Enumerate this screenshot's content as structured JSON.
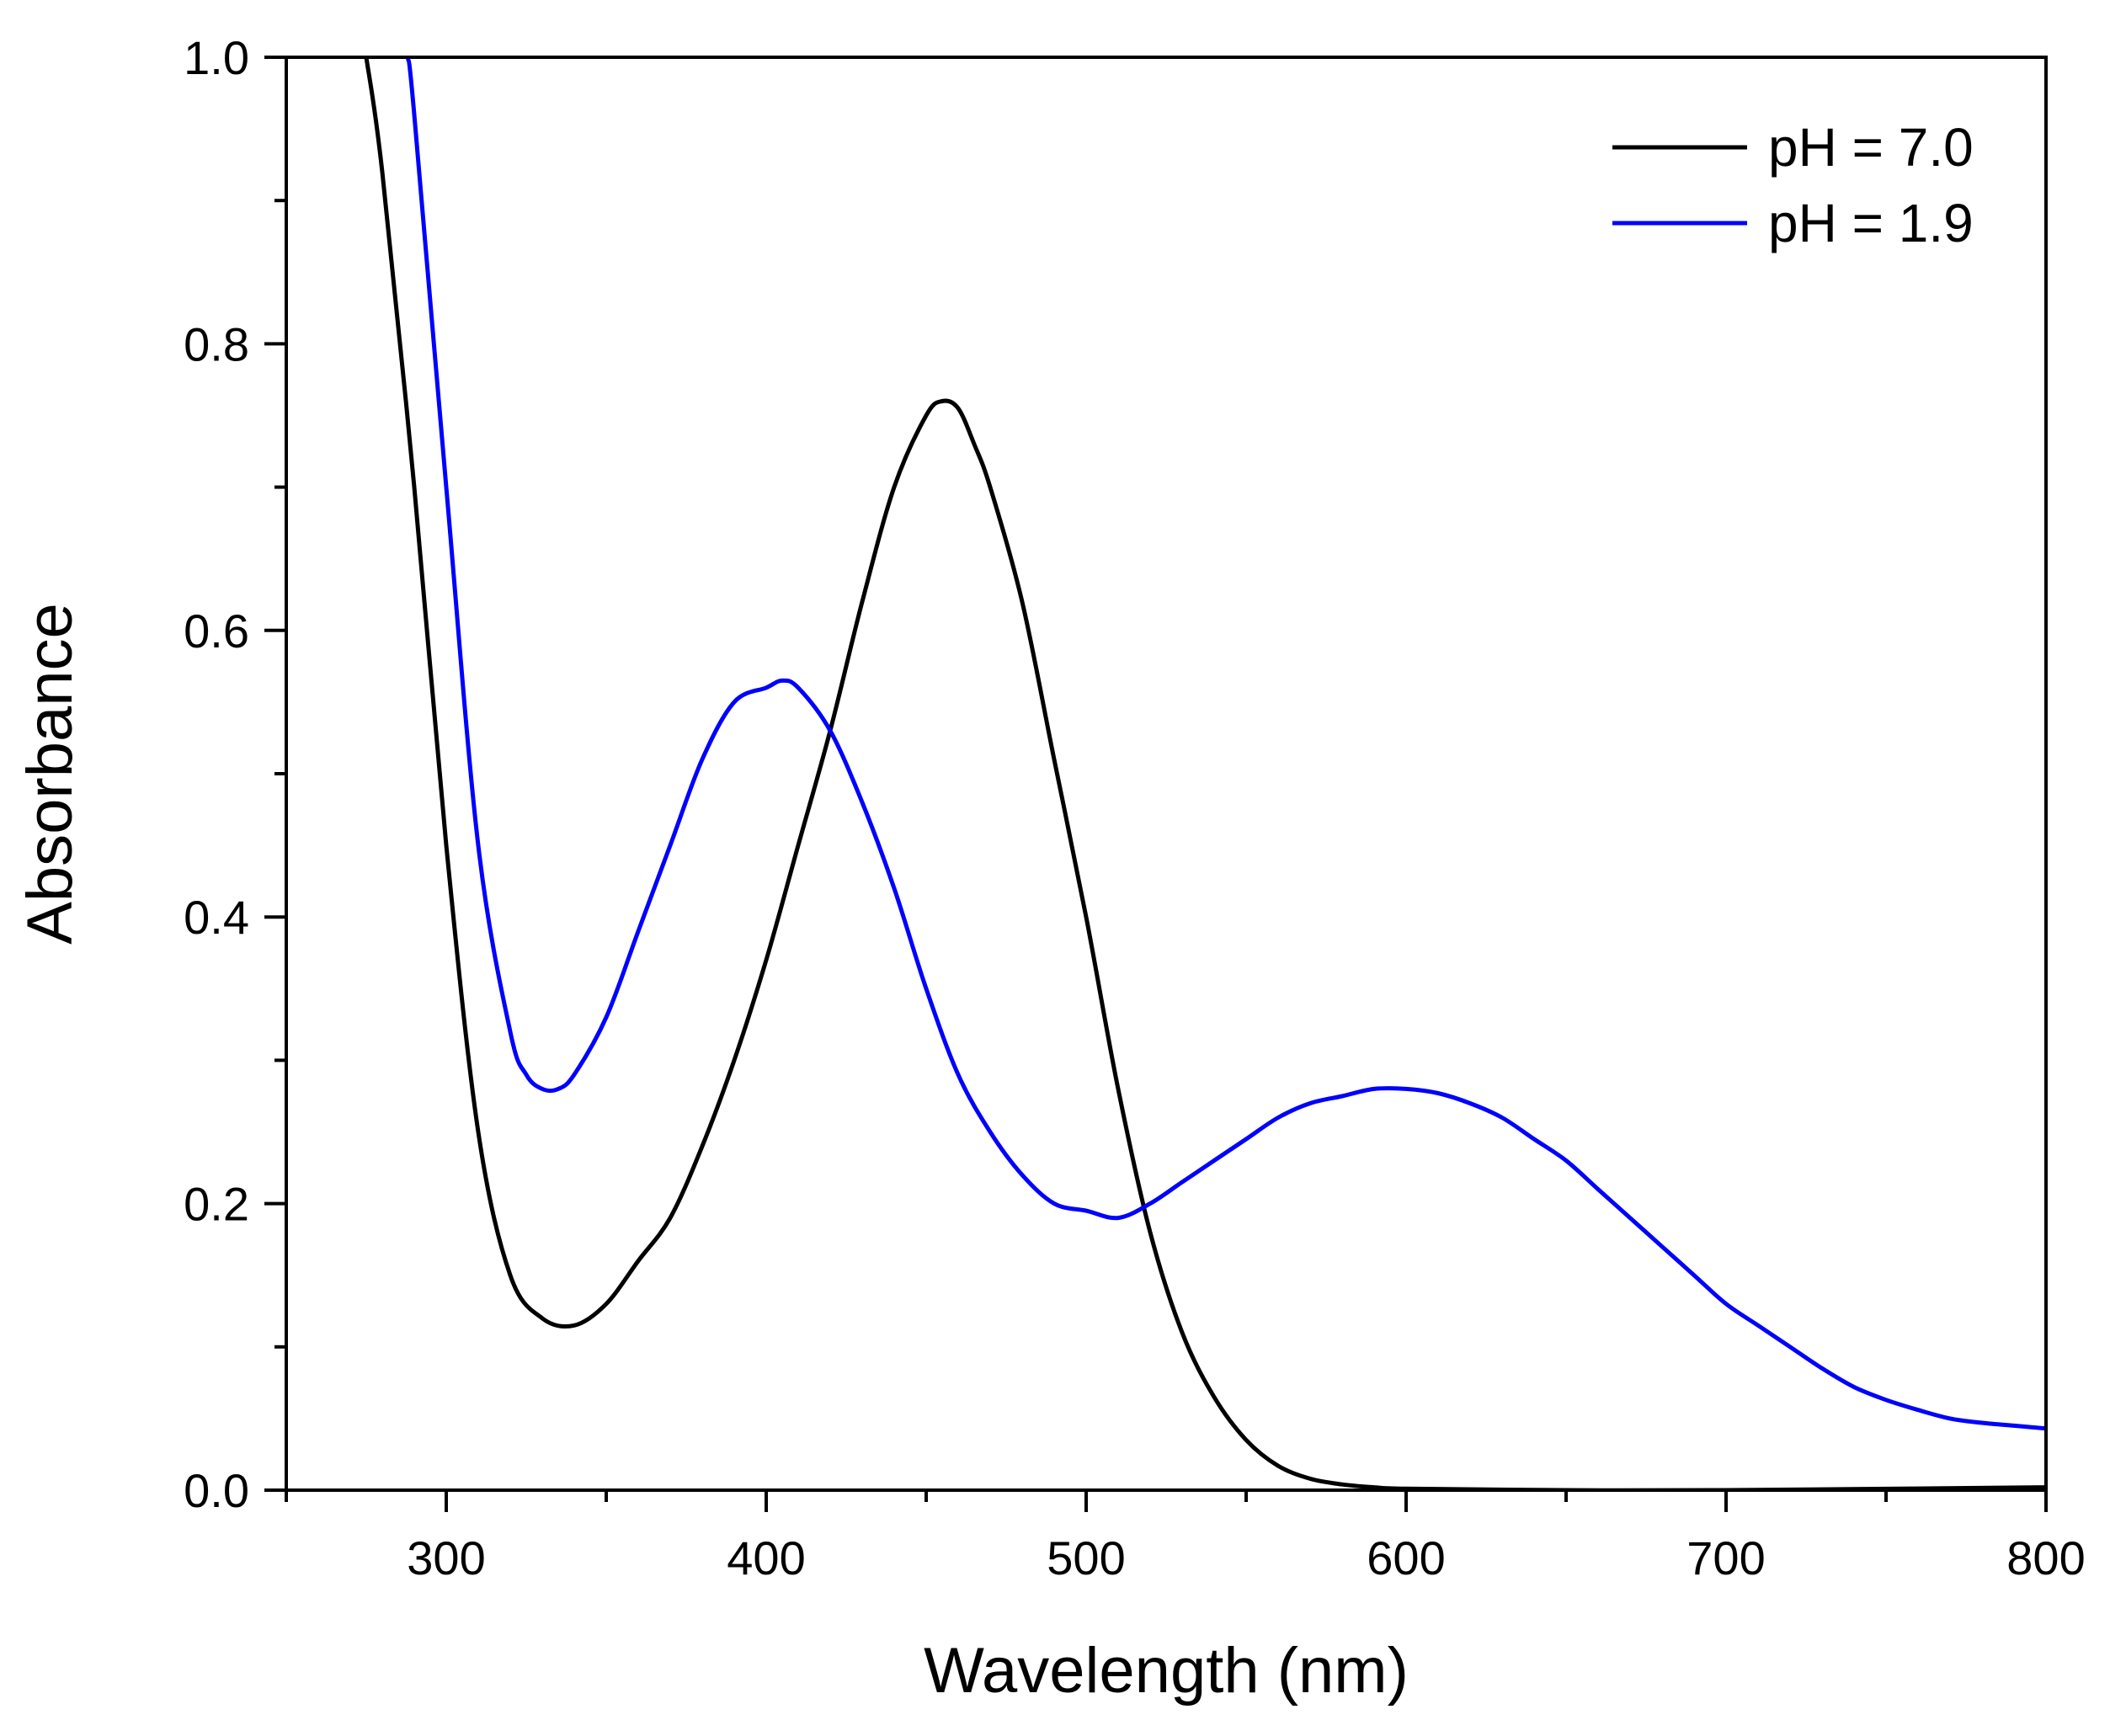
{
  "chart_data": {
    "type": "line",
    "title": "",
    "xlabel": "Wavelength (nm)",
    "ylabel": "Absorbance",
    "xlim": [
      250,
      800
    ],
    "ylim": [
      0.0,
      1.0
    ],
    "xticks": [
      300,
      400,
      500,
      600,
      700,
      800
    ],
    "xtick_labels": [
      "300",
      "400",
      "500",
      "600",
      "700",
      "800"
    ],
    "xminor": [
      250,
      350,
      450,
      550,
      650,
      750
    ],
    "yticks": [
      0.0,
      0.2,
      0.4,
      0.6,
      0.8,
      1.0
    ],
    "ytick_labels": [
      "0.0",
      "0.2",
      "0.4",
      "0.6",
      "0.8",
      "1.0"
    ],
    "yminor": [
      0.1,
      0.3,
      0.5,
      0.7,
      0.9
    ],
    "grid": false,
    "legend_position": "top-right",
    "series": [
      {
        "name": "pH = 7.0",
        "color": "#000000",
        "x": [
          275,
          280,
          290,
          300,
          310,
          320,
          330,
          340,
          350,
          360,
          370,
          380,
          390,
          400,
          410,
          420,
          430,
          440,
          450,
          455,
          460,
          465,
          470,
          480,
          490,
          500,
          510,
          520,
          530,
          540,
          550,
          560,
          570,
          580,
          590,
          600,
          650,
          700,
          800
        ],
        "y": [
          1.0,
          0.92,
          0.7,
          0.45,
          0.25,
          0.15,
          0.12,
          0.115,
          0.13,
          0.16,
          0.19,
          0.24,
          0.3,
          0.37,
          0.45,
          0.53,
          0.62,
          0.7,
          0.75,
          0.76,
          0.755,
          0.73,
          0.7,
          0.62,
          0.51,
          0.4,
          0.28,
          0.18,
          0.11,
          0.065,
          0.035,
          0.017,
          0.008,
          0.004,
          0.002,
          0.001,
          0.0,
          0.0,
          0.002
        ]
      },
      {
        "name": "pH = 1.9",
        "color": "#0000ff",
        "x": [
          288,
          290,
          300,
          310,
          320,
          325,
          330,
          335,
          340,
          350,
          360,
          370,
          380,
          390,
          400,
          405,
          410,
          420,
          430,
          440,
          450,
          460,
          470,
          480,
          490,
          500,
          510,
          520,
          530,
          540,
          550,
          560,
          570,
          580,
          590,
          600,
          610,
          620,
          630,
          640,
          650,
          660,
          670,
          680,
          690,
          700,
          710,
          720,
          730,
          740,
          750,
          760,
          770,
          780,
          790,
          800
        ],
        "y": [
          1.0,
          0.96,
          0.7,
          0.45,
          0.32,
          0.29,
          0.28,
          0.28,
          0.29,
          0.33,
          0.39,
          0.45,
          0.51,
          0.55,
          0.56,
          0.565,
          0.56,
          0.53,
          0.48,
          0.42,
          0.35,
          0.29,
          0.25,
          0.22,
          0.2,
          0.195,
          0.19,
          0.2,
          0.215,
          0.23,
          0.245,
          0.26,
          0.27,
          0.275,
          0.28,
          0.28,
          0.277,
          0.27,
          0.26,
          0.245,
          0.23,
          0.21,
          0.19,
          0.17,
          0.15,
          0.13,
          0.115,
          0.1,
          0.085,
          0.072,
          0.063,
          0.056,
          0.05,
          0.047,
          0.045,
          0.043
        ]
      }
    ]
  }
}
